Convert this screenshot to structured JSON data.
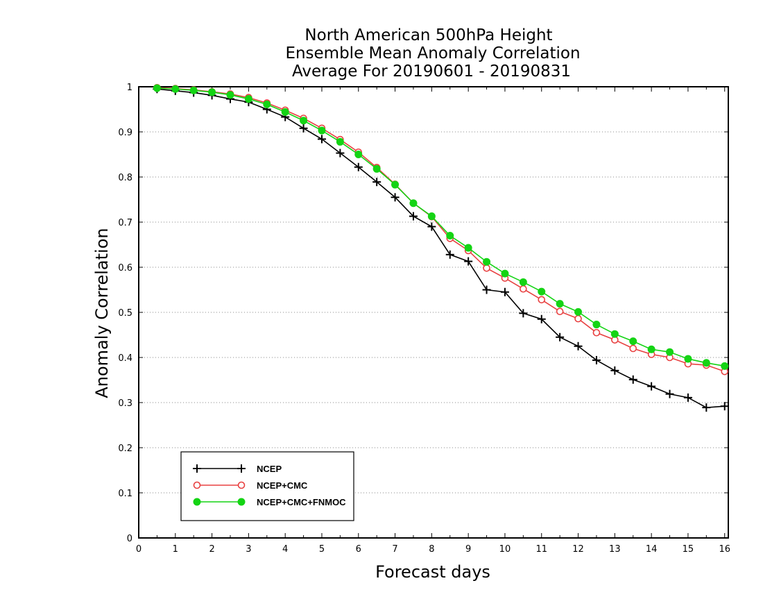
{
  "chart_data": {
    "type": "line",
    "title_lines": [
      "North American 500hPa Height",
      "Ensemble Mean Anomaly Correlation",
      "Average For 20190601 - 20190831"
    ],
    "xlabel": "Forecast days",
    "ylabel": "Anomaly Correlation",
    "xlim": [
      0,
      16.1
    ],
    "ylim": [
      0,
      1
    ],
    "x_ticks": [
      "0",
      "1",
      "2",
      "3",
      "4",
      "5",
      "6",
      "7",
      "8",
      "9",
      "10",
      "11",
      "12",
      "13",
      "14",
      "15",
      "16"
    ],
    "y_ticks": [
      "0",
      "0.1",
      "0.2",
      "0.3",
      "0.4",
      "0.5",
      "0.6",
      "0.7",
      "0.8",
      "0.9",
      "1"
    ],
    "grid": "horizontal-dotted",
    "legend_position": "bottom-left",
    "x": [
      0.5,
      1,
      1.5,
      2,
      2.5,
      3,
      3.5,
      4,
      4.5,
      5,
      5.5,
      6,
      6.5,
      7,
      7.5,
      8,
      8.5,
      9,
      9.5,
      10,
      10.5,
      11,
      11.5,
      12,
      12.5,
      13,
      13.5,
      14,
      14.5,
      15,
      15.5,
      16
    ],
    "series": [
      {
        "name": "NCEP",
        "color": "#000000",
        "marker": "plus",
        "values": [
          0.995,
          0.991,
          0.987,
          0.981,
          0.973,
          0.966,
          0.95,
          0.933,
          0.908,
          0.884,
          0.853,
          0.822,
          0.789,
          0.755,
          0.713,
          0.69,
          0.628,
          0.613,
          0.55,
          0.545,
          0.498,
          0.485,
          0.445,
          0.425,
          0.394,
          0.371,
          0.351,
          0.336,
          0.319,
          0.311,
          0.289,
          0.292
        ]
      },
      {
        "name": "NCEP+CMC",
        "color": "#e84040",
        "marker": "open-circle",
        "values": [
          0.998,
          0.996,
          0.993,
          0.989,
          0.984,
          0.976,
          0.964,
          0.948,
          0.93,
          0.908,
          0.883,
          0.855,
          0.821,
          0.784,
          0.742,
          0.712,
          0.664,
          0.637,
          0.598,
          0.576,
          0.552,
          0.528,
          0.502,
          0.486,
          0.455,
          0.439,
          0.42,
          0.407,
          0.4,
          0.386,
          0.383,
          0.369
        ]
      },
      {
        "name": "NCEP+CMC+FNMOC",
        "color": "#14d414",
        "marker": "filled-circle",
        "values": [
          0.997,
          0.995,
          0.992,
          0.988,
          0.982,
          0.973,
          0.961,
          0.944,
          0.925,
          0.903,
          0.878,
          0.85,
          0.818,
          0.783,
          0.742,
          0.713,
          0.67,
          0.643,
          0.612,
          0.586,
          0.567,
          0.546,
          0.519,
          0.501,
          0.473,
          0.452,
          0.436,
          0.418,
          0.412,
          0.397,
          0.388,
          0.381
        ]
      }
    ]
  }
}
